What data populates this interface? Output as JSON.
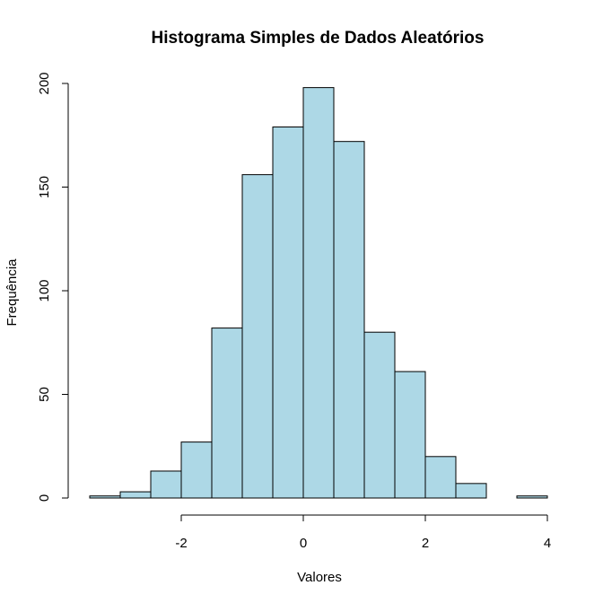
{
  "chart_data": {
    "type": "bar",
    "subtype": "histogram",
    "title": "Histograma Simples de Dados Aleatórios",
    "xlabel": "Valores",
    "ylabel": "Frequência",
    "bin_edges": [
      -3.5,
      -3.0,
      -2.5,
      -2.0,
      -1.5,
      -1.0,
      -0.5,
      0.0,
      0.5,
      1.0,
      1.5,
      2.0,
      2.5,
      3.0,
      3.5,
      4.0
    ],
    "values": [
      1,
      3,
      13,
      27,
      82,
      156,
      179,
      198,
      172,
      80,
      61,
      20,
      7,
      0,
      1
    ],
    "bar_color": "#ADD8E6",
    "xlim": [
      -3.5,
      4
    ],
    "ylim": [
      0,
      200
    ],
    "x_ticks": [
      -2,
      0,
      2,
      4
    ],
    "y_ticks": [
      0,
      50,
      100,
      150,
      200
    ],
    "x_tick_labels": [
      "-2",
      "0",
      "2",
      "4"
    ],
    "y_tick_labels": [
      "0",
      "50",
      "100",
      "150",
      "200"
    ]
  }
}
